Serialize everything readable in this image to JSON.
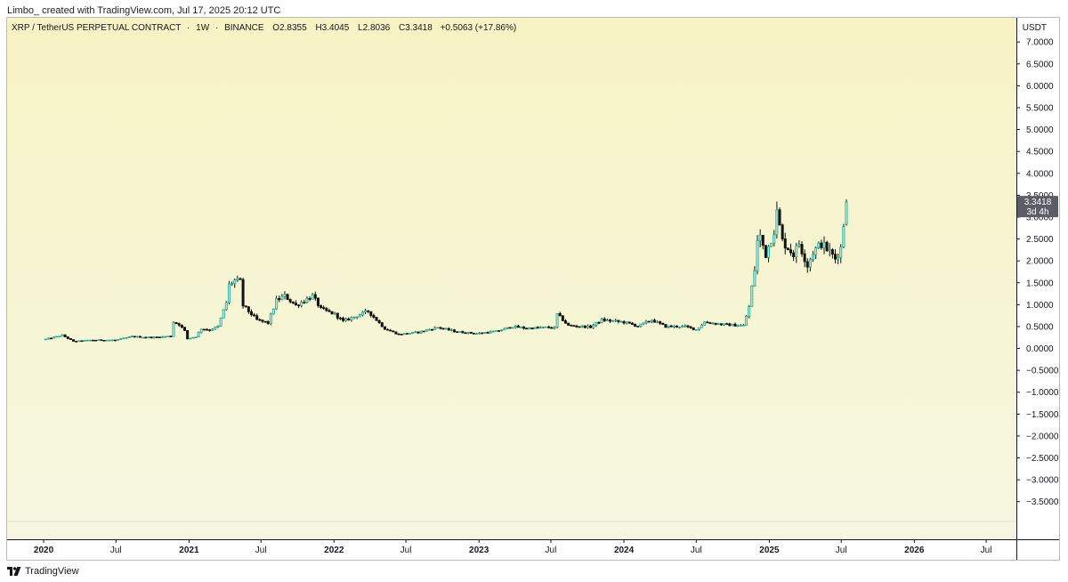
{
  "caption": "Limbo_ created with TradingView.com, Jul 17, 2025 20:12 UTC",
  "legend": {
    "symbol": "XRP / TetherUS PERPETUAL CONTRACT",
    "interval": "1W",
    "exchange": "BINANCE",
    "separator": "·",
    "open": "O2.8355",
    "high": "H3.4045",
    "low": "L2.8036",
    "close": "C3.3418",
    "change": "+0.5063 (+17.86%)"
  },
  "currency": "USDT",
  "branding": "TradingView",
  "price_badge": {
    "price": "3.3418",
    "countdown": "3d 4h"
  },
  "colors": {
    "up": "#26a69a",
    "up_fill": "#b9ebd6",
    "down": "#111111",
    "wick": "#111111",
    "badge_bg": "#5b5e66",
    "background_top": "#f7f3c4",
    "background_bottom": "#f5f6df"
  },
  "chart_data": {
    "type": "candlestick",
    "title": "",
    "xlabel": "",
    "ylabel": "",
    "ylim": [
      -3.75,
      7.35
    ],
    "y_ticks": [
      "7.0000",
      "6.5000",
      "6.0000",
      "5.5000",
      "5.0000",
      "4.5000",
      "4.0000",
      "3.5000",
      "3.0000",
      "2.5000",
      "2.0000",
      "1.5000",
      "1.0000",
      "0.5000",
      "0.0000",
      "−0.5000",
      "−1.0000",
      "−1.5000",
      "−2.0000",
      "−2.5000",
      "−3.0000",
      "−3.5000"
    ],
    "y_tick_values": [
      7,
      6.5,
      6,
      5.5,
      5,
      4.5,
      4,
      3.5,
      3,
      2.5,
      2,
      1.5,
      1,
      0.5,
      0,
      -0.5,
      -1,
      -1.5,
      -2,
      -2.5,
      -3,
      -3.5
    ],
    "x_domain": [
      "2019-10-01",
      "2026-09-15"
    ],
    "x_ticks": [
      {
        "date": "2020-01-01",
        "label": "2020",
        "year": true
      },
      {
        "date": "2020-07-01",
        "label": "Jul",
        "year": false
      },
      {
        "date": "2021-01-01",
        "label": "2021",
        "year": true
      },
      {
        "date": "2021-07-01",
        "label": "Jul",
        "year": false
      },
      {
        "date": "2022-01-01",
        "label": "2022",
        "year": true
      },
      {
        "date": "2022-07-01",
        "label": "Jul",
        "year": false
      },
      {
        "date": "2023-01-01",
        "label": "2023",
        "year": true
      },
      {
        "date": "2023-07-01",
        "label": "Jul",
        "year": false
      },
      {
        "date": "2024-01-01",
        "label": "2024",
        "year": true
      },
      {
        "date": "2024-07-01",
        "label": "Jul",
        "year": false
      },
      {
        "date": "2025-01-01",
        "label": "2025",
        "year": true
      },
      {
        "date": "2025-07-01",
        "label": "Jul",
        "year": false
      },
      {
        "date": "2026-01-01",
        "label": "2026",
        "year": true
      },
      {
        "date": "2026-07-01",
        "label": "Jul",
        "year": false
      }
    ],
    "series": [
      {
        "name": "XRP / TetherUS PERPETUAL CONTRACT",
        "last": {
          "date": "2025-07-14",
          "open": 2.8355,
          "high": 3.4045,
          "low": 2.8036,
          "close": 3.3418
        },
        "close_path": [
          {
            "date": "2020-01-06",
            "close": 0.21
          },
          {
            "date": "2020-02-17",
            "close": 0.3
          },
          {
            "date": "2020-03-16",
            "close": 0.16
          },
          {
            "date": "2020-05-01",
            "close": 0.19
          },
          {
            "date": "2020-07-01",
            "close": 0.19
          },
          {
            "date": "2020-08-10",
            "close": 0.27
          },
          {
            "date": "2020-10-01",
            "close": 0.25
          },
          {
            "date": "2020-11-16",
            "close": 0.28
          },
          {
            "date": "2020-11-23",
            "close": 0.6
          },
          {
            "date": "2020-12-07",
            "close": 0.55
          },
          {
            "date": "2020-12-21",
            "close": 0.4
          },
          {
            "date": "2020-12-28",
            "close": 0.22
          },
          {
            "date": "2021-01-18",
            "close": 0.27
          },
          {
            "date": "2021-02-01",
            "close": 0.45
          },
          {
            "date": "2021-02-22",
            "close": 0.42
          },
          {
            "date": "2021-03-15",
            "close": 0.5
          },
          {
            "date": "2021-04-05",
            "close": 1.05
          },
          {
            "date": "2021-04-12",
            "close": 1.45
          },
          {
            "date": "2021-04-26",
            "close": 1.55
          },
          {
            "date": "2021-05-10",
            "close": 1.52
          },
          {
            "date": "2021-05-17",
            "close": 0.98
          },
          {
            "date": "2021-06-21",
            "close": 0.65
          },
          {
            "date": "2021-07-19",
            "close": 0.58
          },
          {
            "date": "2021-08-09",
            "close": 1.1
          },
          {
            "date": "2021-08-30",
            "close": 1.2
          },
          {
            "date": "2021-09-27",
            "close": 0.98
          },
          {
            "date": "2021-11-08",
            "close": 1.2
          },
          {
            "date": "2021-11-29",
            "close": 0.9
          },
          {
            "date": "2022-01-03",
            "close": 0.78
          },
          {
            "date": "2022-01-24",
            "close": 0.62
          },
          {
            "date": "2022-03-28",
            "close": 0.85
          },
          {
            "date": "2022-05-09",
            "close": 0.45
          },
          {
            "date": "2022-06-13",
            "close": 0.32
          },
          {
            "date": "2022-08-01",
            "close": 0.37
          },
          {
            "date": "2022-09-19",
            "close": 0.48
          },
          {
            "date": "2022-11-07",
            "close": 0.38
          },
          {
            "date": "2022-12-26",
            "close": 0.34
          },
          {
            "date": "2023-02-13",
            "close": 0.39
          },
          {
            "date": "2023-03-27",
            "close": 0.5
          },
          {
            "date": "2023-05-01",
            "close": 0.46
          },
          {
            "date": "2023-06-19",
            "close": 0.48
          },
          {
            "date": "2023-07-10",
            "close": 0.47
          },
          {
            "date": "2023-07-17",
            "close": 0.78
          },
          {
            "date": "2023-08-14",
            "close": 0.52
          },
          {
            "date": "2023-10-09",
            "close": 0.49
          },
          {
            "date": "2023-11-06",
            "close": 0.65
          },
          {
            "date": "2024-01-01",
            "close": 0.6
          },
          {
            "date": "2024-02-05",
            "close": 0.51
          },
          {
            "date": "2024-03-11",
            "close": 0.65
          },
          {
            "date": "2024-04-15",
            "close": 0.5
          },
          {
            "date": "2024-06-03",
            "close": 0.5
          },
          {
            "date": "2024-07-01",
            "close": 0.43
          },
          {
            "date": "2024-07-22",
            "close": 0.6
          },
          {
            "date": "2024-09-02",
            "close": 0.55
          },
          {
            "date": "2024-10-28",
            "close": 0.52
          },
          {
            "date": "2024-11-11",
            "close": 0.95
          },
          {
            "date": "2024-11-18",
            "close": 1.4
          },
          {
            "date": "2024-11-25",
            "close": 1.8
          },
          {
            "date": "2024-12-02",
            "close": 2.45
          },
          {
            "date": "2024-12-09",
            "close": 2.55
          },
          {
            "date": "2024-12-23",
            "close": 2.15
          },
          {
            "date": "2025-01-13",
            "close": 2.7
          },
          {
            "date": "2025-01-20",
            "close": 3.1
          },
          {
            "date": "2025-02-03",
            "close": 2.45
          },
          {
            "date": "2025-03-03",
            "close": 2.15
          },
          {
            "date": "2025-03-17",
            "close": 2.4
          },
          {
            "date": "2025-04-07",
            "close": 1.9
          },
          {
            "date": "2025-04-21",
            "close": 2.2
          },
          {
            "date": "2025-05-12",
            "close": 2.4
          },
          {
            "date": "2025-06-02",
            "close": 2.2
          },
          {
            "date": "2025-06-16",
            "close": 2.05
          },
          {
            "date": "2025-06-30",
            "close": 2.3
          },
          {
            "date": "2025-07-07",
            "close": 2.84
          },
          {
            "date": "2025-07-14",
            "close": 3.34
          }
        ]
      }
    ]
  }
}
